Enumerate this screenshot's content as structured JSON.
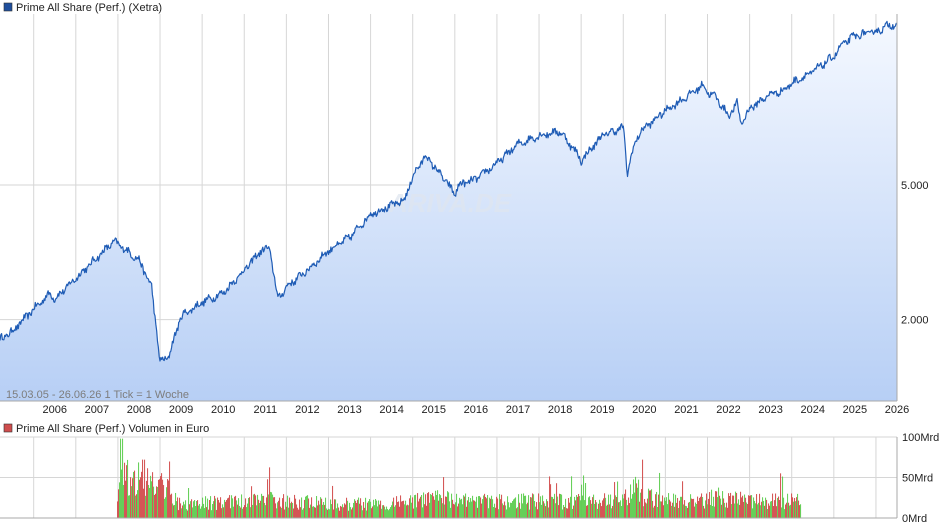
{
  "chart_data": [
    {
      "type": "area",
      "scale": "log",
      "legend": {
        "label": "Prime All Share (Perf.) (Xetra)",
        "color": "#1f4e9c"
      },
      "x": [
        2005.2,
        2005.5,
        2006.0,
        2006.4,
        2006.5,
        2007.0,
        2007.5,
        2007.9,
        2008.0,
        2008.5,
        2008.8,
        2009.0,
        2009.2,
        2009.5,
        2010.0,
        2010.5,
        2011.0,
        2011.4,
        2011.6,
        2011.8,
        2012.0,
        2012.5,
        2013.0,
        2013.5,
        2014.0,
        2014.5,
        2014.8,
        2015.0,
        2015.3,
        2015.7,
        2016.0,
        2016.1,
        2016.5,
        2017.0,
        2017.5,
        2018.0,
        2018.5,
        2018.9,
        2019.0,
        2019.5,
        2020.0,
        2020.1,
        2020.2,
        2020.4,
        2020.7,
        2021.0,
        2021.5,
        2021.9,
        2022.0,
        2022.2,
        2022.5,
        2022.7,
        2022.8,
        2023.0,
        2023.5,
        2023.8,
        2024.0,
        2024.5,
        2025.0,
        2025.2,
        2025.5,
        2026.0,
        2026.3,
        2026.5
      ],
      "y": [
        1750,
        1850,
        2150,
        2400,
        2300,
        2650,
        3050,
        3400,
        3350,
        3000,
        2500,
        1500,
        1550,
        2050,
        2250,
        2400,
        2800,
        3200,
        3250,
        2300,
        2500,
        2800,
        3200,
        3500,
        4100,
        4350,
        4500,
        5300,
        6100,
        5300,
        4700,
        5000,
        5200,
        5800,
        6600,
        7000,
        7200,
        6200,
        5900,
        7000,
        7400,
        5400,
        6200,
        7200,
        7700,
        8300,
        9100,
        9900,
        9400,
        9100,
        8000,
        8700,
        7600,
        8400,
        9300,
        9500,
        10000,
        10800,
        12000,
        13000,
        13800,
        14200,
        14800,
        15000
      ],
      "ytick_labels": [
        "5.000",
        "2.000"
      ],
      "ytick_values": [
        5000,
        2000
      ],
      "ylim": [
        1150,
        16000
      ],
      "xlim": [
        2005.2,
        2026.5
      ],
      "xtick_labels": [
        "2006",
        "2007",
        "2008",
        "2009",
        "2010",
        "2011",
        "2012",
        "2013",
        "2014",
        "2015",
        "2016",
        "2017",
        "2018",
        "2019",
        "2020",
        "2021",
        "2022",
        "2023",
        "2024",
        "2025",
        "2026"
      ],
      "grid": true,
      "annotation": "15.03.05 - 26.06.26   1 Tick = 1 Woche",
      "watermark": "ARIVA.DE",
      "colors": {
        "line": "#1f5cb5",
        "fill_top": "#f4f8ff",
        "fill_bottom": "#b7cff5",
        "grid": "#d6d6d6"
      }
    },
    {
      "type": "bar",
      "legend": {
        "label": "Prime All Share (Perf.) Volumen in Euro",
        "color": "#cf4d4d"
      },
      "x_start": 2007.98,
      "x_end": 2024.2,
      "bucket_years": [
        2008.0,
        2008.3,
        2008.7,
        2009.0,
        2009.2,
        2009.4,
        2010.0,
        2011.0,
        2011.6,
        2012.0,
        2013.0,
        2014.0,
        2015.0,
        2015.5,
        2016.0,
        2017.0,
        2018.0,
        2019.0,
        2020.0,
        2020.2,
        2020.5,
        2021.0,
        2022.0,
        2022.2,
        2023.0,
        2024.0,
        2024.2
      ],
      "bucket_volumes": [
        45,
        60,
        55,
        50,
        35,
        20,
        20,
        22,
        27,
        22,
        20,
        19,
        22,
        26,
        24,
        22,
        23,
        22,
        25,
        45,
        28,
        24,
        23,
        30,
        22,
        24,
        24
      ],
      "series_colors": {
        "up": "#5ccc4e",
        "down": "#d24a4a"
      },
      "ytick_labels": [
        "100Mrd",
        "50Mrd",
        "0Mrd"
      ],
      "ytick_values": [
        100,
        50,
        0
      ],
      "ylim": [
        0,
        100
      ],
      "unit": "Mrd"
    }
  ]
}
